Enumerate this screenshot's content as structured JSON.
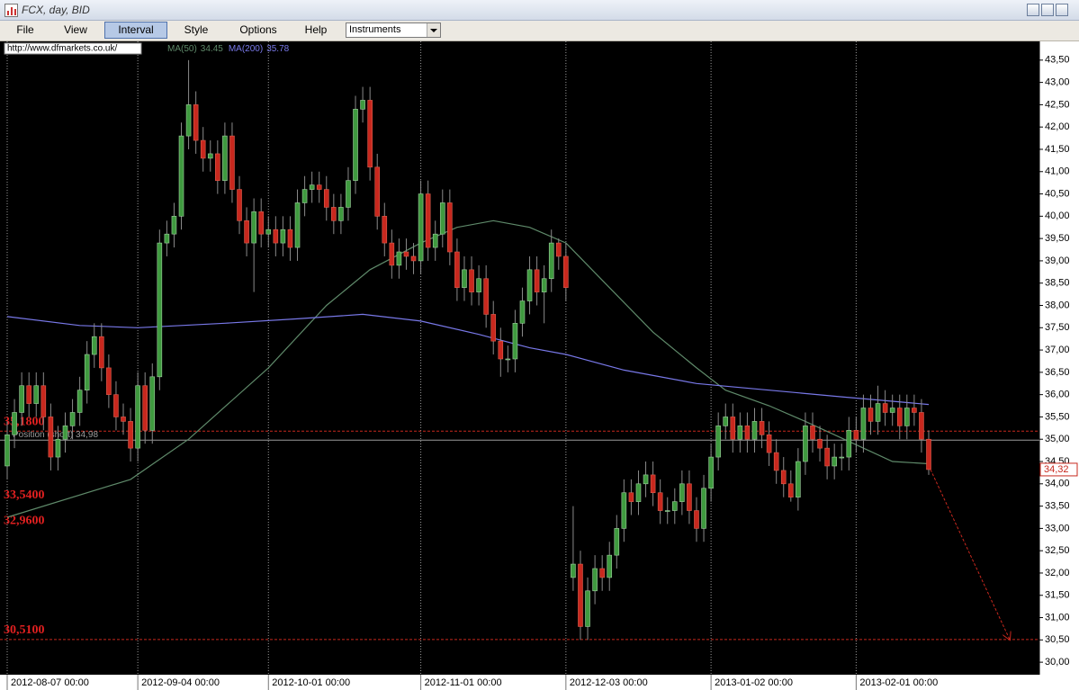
{
  "window": {
    "title": "FCX, day, BID",
    "menu": [
      "File",
      "View",
      "Interval",
      "Style",
      "Options",
      "Help"
    ],
    "instruments": "Instruments",
    "url": "http://www.dfmarkets.co.uk/"
  },
  "chart_data": {
    "type": "candlestick",
    "categories": [
      "2012-08-07 00:00",
      null,
      null,
      null,
      null,
      null,
      null,
      null,
      null,
      null,
      null,
      null,
      null,
      null,
      null,
      null,
      null,
      null,
      "2012-09-04 00:00",
      null,
      null,
      null,
      null,
      null,
      null,
      null,
      null,
      null,
      null,
      null,
      null,
      null,
      null,
      null,
      null,
      null,
      "2012-10-01 00:00",
      null,
      null,
      null,
      null,
      null,
      null,
      null,
      null,
      null,
      null,
      null,
      null,
      null,
      null,
      null,
      null,
      null,
      null,
      null,
      null,
      "2012-11-01 00:00",
      null,
      null,
      null,
      null,
      null,
      null,
      null,
      null,
      null,
      null,
      null,
      null,
      null,
      null,
      null,
      null,
      null,
      null,
      null,
      "2012-12-03 00:00",
      null,
      null,
      null,
      null,
      null,
      null,
      null,
      null,
      null,
      null,
      null,
      null,
      null,
      null,
      null,
      null,
      null,
      null,
      null,
      "2013-01-02 00:00",
      null,
      null,
      null,
      null,
      null,
      null,
      null,
      null,
      null,
      null,
      null,
      null,
      null,
      null,
      null,
      null,
      null,
      null,
      null,
      "2013-02-01 00:00",
      null,
      null,
      null,
      null,
      null,
      null,
      null,
      null,
      null,
      null
    ],
    "open": [
      34.4,
      35.1,
      35.6,
      36.2,
      35.8,
      36.2,
      35.5,
      34.6,
      35.0,
      35.3,
      35.6,
      36.1,
      36.9,
      37.3,
      36.6,
      36.0,
      35.5,
      35.4,
      34.8,
      36.2,
      35.2,
      36.4,
      39.4,
      39.6,
      40.0,
      41.8,
      42.5,
      41.7,
      41.3,
      41.4,
      40.8,
      41.8,
      40.6,
      39.9,
      39.4,
      40.1,
      39.6,
      39.7,
      39.4,
      39.7,
      39.3,
      40.3,
      40.6,
      40.7,
      40.6,
      40.2,
      39.9,
      40.2,
      40.8,
      42.4,
      42.6,
      41.1,
      40.0,
      39.4,
      38.9,
      39.2,
      39.1,
      39.0,
      40.5,
      39.3,
      39.6,
      40.3,
      39.2,
      38.4,
      38.8,
      38.3,
      38.6,
      37.8,
      37.2,
      36.8,
      36.8,
      37.6,
      38.1,
      38.8,
      38.3,
      38.6,
      39.4,
      39.1,
      31.9,
      32.2,
      30.8,
      31.6,
      32.1,
      31.9,
      32.4,
      33.0,
      33.8,
      33.6,
      34.0,
      34.2,
      33.8,
      33.4,
      33.4,
      33.6,
      34.0,
      33.4,
      33.0,
      33.9,
      34.6,
      35.3,
      35.5,
      35.0,
      35.3,
      35.0,
      35.4,
      35.1,
      34.7,
      34.3,
      34.0,
      33.7,
      34.5,
      35.3,
      35.0,
      34.8,
      34.4,
      34.6,
      34.6,
      35.2,
      35.0,
      35.7,
      35.4,
      35.8,
      35.6,
      35.7,
      35.3,
      35.7,
      35.6,
      35.0
    ],
    "high": [
      35.4,
      35.9,
      36.5,
      36.5,
      36.5,
      36.5,
      35.8,
      35.3,
      35.6,
      35.9,
      36.4,
      37.2,
      37.6,
      37.6,
      36.9,
      36.3,
      35.8,
      35.7,
      36.5,
      36.5,
      36.7,
      39.7,
      39.9,
      40.3,
      42.1,
      43.5,
      42.8,
      42.0,
      41.7,
      41.7,
      42.1,
      42.1,
      40.9,
      40.2,
      40.4,
      40.4,
      40.0,
      40.0,
      40.0,
      40.0,
      40.6,
      40.9,
      41.0,
      41.0,
      40.9,
      40.5,
      40.5,
      41.1,
      42.7,
      42.9,
      42.9,
      41.4,
      40.3,
      39.7,
      39.5,
      39.5,
      39.4,
      40.8,
      40.8,
      39.9,
      40.6,
      40.6,
      39.5,
      39.1,
      39.1,
      38.9,
      38.9,
      38.1,
      37.5,
      37.1,
      37.9,
      38.4,
      39.1,
      39.1,
      38.9,
      39.7,
      39.5,
      39.4,
      33.5,
      32.5,
      31.9,
      32.4,
      32.4,
      32.7,
      33.3,
      34.1,
      34.1,
      34.3,
      34.5,
      34.5,
      34.1,
      33.7,
      33.9,
      34.3,
      34.3,
      33.7,
      34.2,
      34.9,
      35.6,
      35.8,
      35.8,
      35.6,
      35.6,
      35.7,
      35.7,
      35.4,
      35.0,
      34.6,
      34.3,
      34.8,
      35.6,
      35.6,
      35.3,
      35.1,
      34.9,
      34.9,
      35.5,
      35.5,
      36.0,
      36.0,
      36.2,
      36.1,
      36.0,
      36.0,
      36.0,
      36.0,
      35.9,
      35.2
    ],
    "low": [
      34.1,
      34.8,
      35.3,
      35.5,
      35.5,
      35.2,
      34.3,
      34.3,
      34.7,
      35.0,
      35.3,
      35.8,
      36.6,
      36.3,
      35.7,
      35.2,
      35.1,
      34.5,
      34.5,
      34.9,
      34.9,
      36.1,
      39.1,
      39.3,
      39.7,
      41.5,
      41.4,
      41.0,
      41.0,
      40.5,
      40.5,
      40.3,
      39.6,
      39.1,
      38.3,
      39.3,
      39.3,
      39.1,
      39.1,
      39.0,
      39.0,
      40.0,
      40.3,
      40.3,
      39.9,
      39.6,
      39.6,
      39.9,
      40.5,
      42.1,
      40.8,
      39.7,
      39.1,
      38.6,
      38.6,
      38.8,
      38.7,
      38.7,
      39.0,
      39.0,
      39.3,
      38.9,
      38.1,
      38.1,
      38.0,
      38.0,
      37.5,
      36.9,
      36.4,
      36.5,
      36.5,
      37.3,
      37.8,
      38.0,
      37.6,
      38.3,
      38.8,
      38.1,
      31.6,
      30.5,
      30.5,
      31.3,
      31.6,
      31.6,
      32.1,
      32.7,
      33.3,
      33.3,
      33.7,
      33.5,
      33.1,
      33.1,
      33.1,
      33.3,
      33.1,
      32.7,
      32.7,
      33.6,
      34.3,
      35.0,
      34.7,
      34.7,
      34.7,
      34.7,
      34.8,
      34.4,
      34.0,
      33.7,
      33.6,
      33.4,
      34.2,
      34.7,
      34.5,
      34.1,
      34.1,
      34.3,
      34.3,
      34.7,
      34.7,
      35.1,
      35.1,
      35.3,
      35.3,
      35.0,
      35.0,
      35.3,
      34.7,
      34.2
    ],
    "close": [
      35.1,
      35.6,
      36.2,
      35.8,
      36.2,
      35.5,
      34.6,
      35.0,
      35.3,
      35.6,
      36.1,
      36.9,
      37.3,
      36.6,
      36.0,
      35.5,
      35.4,
      34.8,
      36.2,
      35.2,
      36.4,
      39.4,
      39.6,
      40.0,
      41.8,
      42.5,
      41.7,
      41.3,
      41.4,
      40.8,
      41.8,
      40.6,
      39.9,
      39.4,
      40.1,
      39.6,
      39.7,
      39.4,
      39.7,
      39.3,
      40.3,
      40.6,
      40.7,
      40.6,
      40.2,
      39.9,
      40.2,
      40.8,
      42.4,
      42.6,
      41.1,
      40.0,
      39.4,
      38.9,
      39.2,
      39.1,
      39.0,
      40.5,
      39.3,
      39.6,
      40.3,
      39.2,
      38.4,
      38.8,
      38.3,
      38.6,
      37.8,
      37.2,
      36.8,
      36.8,
      37.6,
      38.1,
      38.8,
      38.3,
      38.6,
      39.4,
      39.1,
      38.4,
      32.2,
      30.8,
      31.6,
      32.1,
      31.9,
      32.4,
      33.0,
      33.8,
      33.6,
      34.0,
      34.2,
      33.8,
      33.4,
      33.4,
      33.6,
      34.0,
      33.4,
      33.0,
      33.9,
      34.6,
      35.3,
      35.5,
      35.0,
      35.3,
      35.0,
      35.4,
      35.1,
      34.7,
      34.3,
      34.0,
      33.7,
      34.5,
      35.3,
      35.0,
      34.8,
      34.4,
      34.6,
      34.6,
      35.2,
      35.0,
      35.7,
      35.4,
      35.8,
      35.6,
      35.7,
      35.3,
      35.7,
      35.6,
      35.0,
      34.32
    ],
    "up_color": "#3f9a3f",
    "down_color": "#c8281e",
    "ma_lines": [
      {
        "name": "MA(50)",
        "last": 34.45,
        "color": "#5f8a6a",
        "x": [
          0,
          17,
          25,
          36,
          44,
          50,
          57,
          62,
          67,
          72,
          77,
          83,
          89,
          95,
          99,
          105,
          110,
          116,
          122,
          127
        ],
        "values": [
          33.25,
          34.1,
          35.0,
          36.6,
          38.0,
          38.8,
          39.4,
          39.75,
          39.9,
          39.75,
          39.4,
          38.4,
          37.4,
          36.6,
          36.1,
          35.75,
          35.4,
          34.95,
          34.5,
          34.45
        ]
      },
      {
        "name": "MA(200)",
        "last": 35.78,
        "color": "#7878e8",
        "x": [
          0,
          10,
          18,
          30,
          40,
          49,
          57,
          65,
          72,
          77,
          85,
          95,
          105,
          115,
          127
        ],
        "values": [
          37.75,
          37.55,
          37.5,
          37.6,
          37.7,
          37.8,
          37.65,
          37.35,
          37.05,
          36.9,
          36.55,
          36.25,
          36.1,
          35.95,
          35.78
        ]
      }
    ],
    "levels": [
      {
        "value": 35.18,
        "label": "35,1800",
        "line": true
      },
      {
        "value": 33.54,
        "label": "33,5400",
        "line": false
      },
      {
        "value": 32.96,
        "label": "32,9600",
        "line": false
      },
      {
        "value": 30.51,
        "label": "30,5100",
        "line": true
      }
    ],
    "position": {
      "value": 34.98,
      "label": "Position (short) 34,98"
    },
    "price": {
      "value": 34.32,
      "label": "34,32"
    },
    "ylim": [
      29.72,
      43.92
    ],
    "yticks": [
      {
        "value": 43.5,
        "label": "43,50"
      },
      {
        "value": 43,
        "label": "43,00"
      },
      {
        "value": 42.5,
        "label": "42,50"
      },
      {
        "value": 42,
        "label": "42,00"
      },
      {
        "value": 41.5,
        "label": "41,50"
      },
      {
        "value": 41,
        "label": "41,00"
      },
      {
        "value": 40.5,
        "label": "40,50"
      },
      {
        "value": 40,
        "label": "40,00"
      },
      {
        "value": 39.5,
        "label": "39,50"
      },
      {
        "value": 39,
        "label": "39,00"
      },
      {
        "value": 38.5,
        "label": "38,50"
      },
      {
        "value": 38,
        "label": "38,00"
      },
      {
        "value": 37.5,
        "label": "37,50"
      },
      {
        "value": 37,
        "label": "37,00"
      },
      {
        "value": 36.5,
        "label": "36,50"
      },
      {
        "value": 36,
        "label": "36,00"
      },
      {
        "value": 35.5,
        "label": "35,50"
      },
      {
        "value": 35,
        "label": "35,00"
      },
      {
        "value": 34.5,
        "label": "34,50"
      },
      {
        "value": 34,
        "label": "34,00"
      },
      {
        "value": 33.5,
        "label": "33,50"
      },
      {
        "value": 33,
        "label": "33,00"
      },
      {
        "value": 32.5,
        "label": "32,50"
      },
      {
        "value": 32,
        "label": "32,00"
      },
      {
        "value": 31.5,
        "label": "31,50"
      },
      {
        "value": 31,
        "label": "31,00"
      },
      {
        "value": 30.5,
        "label": "30,50"
      },
      {
        "value": 30,
        "label": "30,00"
      }
    ]
  }
}
